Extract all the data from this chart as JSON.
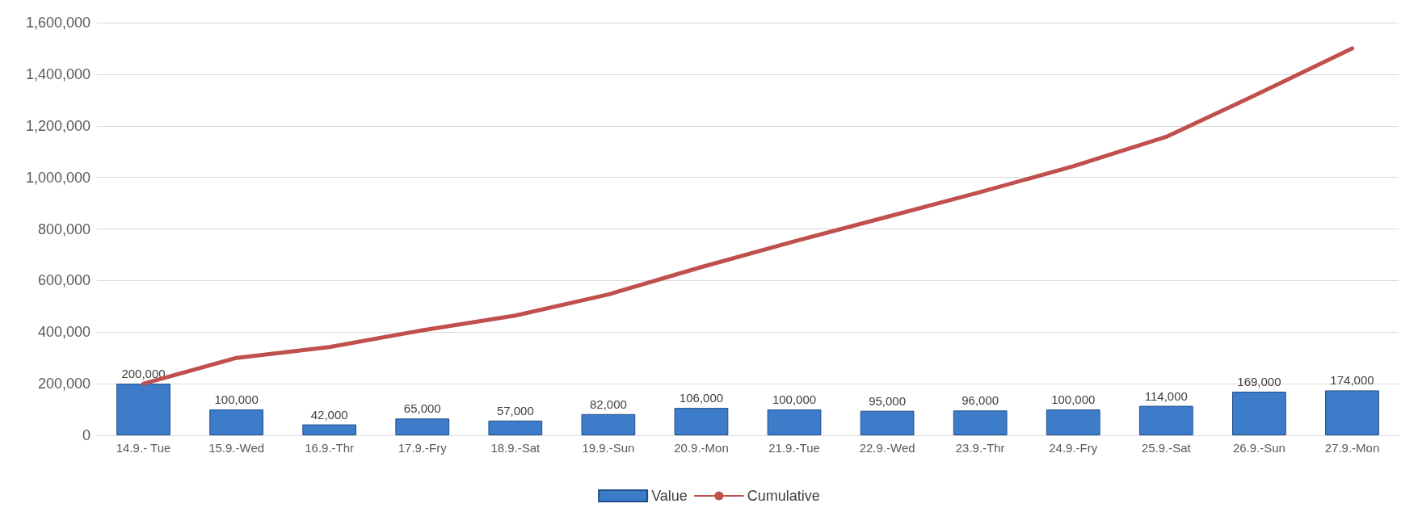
{
  "chart_data": {
    "type": "bar",
    "categories": [
      "14.9.- Tue",
      "15.9.-Wed",
      "16.9.-Thr",
      "17.9.-Fry",
      "18.9.-Sat",
      "19.9.-Sun",
      "20.9.-Mon",
      "21.9.-Tue",
      "22.9.-Wed",
      "23.9.-Thr",
      "24.9.-Fry",
      "25.9.-Sat",
      "26.9.-Sun",
      "27.9.-Mon"
    ],
    "series": [
      {
        "name": "Value",
        "color": "#3c7cc9",
        "values": [
          200000,
          100000,
          42000,
          65000,
          57000,
          82000,
          106000,
          100000,
          95000,
          96000,
          100000,
          114000,
          169000,
          174000
        ],
        "value_labels": [
          "200,000",
          "100,000",
          "42,000",
          "65,000",
          "57,000",
          "82,000",
          "106,000",
          "100,000",
          "95,000",
          "96,000",
          "100,000",
          "114,000",
          "169,000",
          "174,000"
        ]
      },
      {
        "name": "Cumulative",
        "type": "line",
        "color": "#c0504d",
        "values": [
          200000,
          300000,
          342000,
          407000,
          464000,
          546000,
          652000,
          752000,
          847000,
          943000,
          1043000,
          1157000,
          1326000,
          1500000
        ]
      }
    ],
    "ylim": [
      0,
      1600000
    ],
    "yticks": [
      {
        "value": 0,
        "label": "0"
      },
      {
        "value": 200000,
        "label": "200,000"
      },
      {
        "value": 400000,
        "label": "400,000"
      },
      {
        "value": 600000,
        "label": "600,000"
      },
      {
        "value": 800000,
        "label": "800,000"
      },
      {
        "value": 1000000,
        "label": "1,000,000"
      },
      {
        "value": 1200000,
        "label": "1,200,000"
      },
      {
        "value": 1400000,
        "label": "1,400,000"
      },
      {
        "value": 1600000,
        "label": "1,600,000"
      }
    ],
    "grid": "y",
    "legend": "bottom",
    "line_style": "solid"
  }
}
